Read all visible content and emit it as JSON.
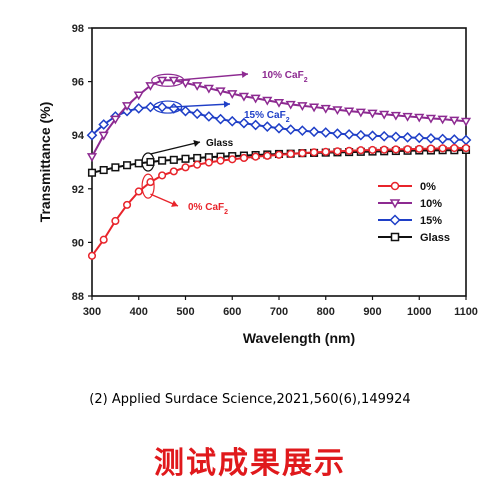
{
  "chart_data": {
    "type": "line",
    "xlabel": "Wavelength (nm)",
    "ylabel": "Transmittance (%)",
    "xlim": [
      300,
      1100
    ],
    "ylim": [
      88,
      98
    ],
    "xticks": [
      300,
      400,
      500,
      600,
      700,
      800,
      900,
      1000,
      1100
    ],
    "yticks": [
      88,
      90,
      92,
      94,
      96,
      98
    ],
    "grid": false,
    "legend_position": "right",
    "series": [
      {
        "name": "0%",
        "color": "#e8242b",
        "marker": "circle",
        "x": [
          300,
          325,
          350,
          375,
          400,
          425,
          450,
          475,
          500,
          525,
          550,
          575,
          600,
          625,
          650,
          675,
          700,
          725,
          750,
          775,
          800,
          825,
          850,
          875,
          900,
          925,
          950,
          975,
          1000,
          1025,
          1050,
          1075,
          1100
        ],
        "y": [
          89.5,
          90.1,
          90.8,
          91.4,
          91.9,
          92.25,
          92.5,
          92.65,
          92.8,
          92.9,
          92.98,
          93.05,
          93.1,
          93.15,
          93.2,
          93.23,
          93.27,
          93.3,
          93.33,
          93.36,
          93.38,
          93.4,
          93.42,
          93.44,
          93.45,
          93.46,
          93.47,
          93.48,
          93.49,
          93.5,
          93.51,
          93.52,
          93.52
        ]
      },
      {
        "name": "10%",
        "color": "#8d2a91",
        "marker": "triangle-down",
        "x": [
          300,
          325,
          350,
          375,
          400,
          425,
          450,
          475,
          500,
          525,
          550,
          575,
          600,
          625,
          650,
          675,
          700,
          725,
          750,
          775,
          800,
          825,
          850,
          875,
          900,
          925,
          950,
          975,
          1000,
          1025,
          1050,
          1075,
          1100
        ],
        "y": [
          93.2,
          94.0,
          94.6,
          95.1,
          95.5,
          95.85,
          96.05,
          96.05,
          95.95,
          95.85,
          95.75,
          95.65,
          95.55,
          95.45,
          95.38,
          95.3,
          95.22,
          95.15,
          95.1,
          95.05,
          95.0,
          94.95,
          94.9,
          94.86,
          94.82,
          94.78,
          94.74,
          94.7,
          94.67,
          94.63,
          94.6,
          94.56,
          94.52
        ]
      },
      {
        "name": "15%",
        "color": "#1f3fc7",
        "marker": "diamond",
        "x": [
          300,
          325,
          350,
          375,
          400,
          425,
          450,
          475,
          500,
          525,
          550,
          575,
          600,
          625,
          650,
          675,
          700,
          725,
          750,
          775,
          800,
          825,
          850,
          875,
          900,
          925,
          950,
          975,
          1000,
          1025,
          1050,
          1075,
          1100
        ],
        "y": [
          94.0,
          94.4,
          94.7,
          94.9,
          95.0,
          95.05,
          95.05,
          95.0,
          94.9,
          94.8,
          94.7,
          94.6,
          94.52,
          94.45,
          94.38,
          94.32,
          94.26,
          94.21,
          94.17,
          94.13,
          94.1,
          94.06,
          94.03,
          94.0,
          93.98,
          93.96,
          93.94,
          93.92,
          93.9,
          93.88,
          93.86,
          93.84,
          93.82
        ]
      },
      {
        "name": "Glass",
        "color": "#111111",
        "marker": "square",
        "x": [
          300,
          325,
          350,
          375,
          400,
          425,
          450,
          475,
          500,
          525,
          550,
          575,
          600,
          625,
          650,
          675,
          700,
          725,
          750,
          775,
          800,
          825,
          850,
          875,
          900,
          925,
          950,
          975,
          1000,
          1025,
          1050,
          1075,
          1100
        ],
        "y": [
          92.6,
          92.7,
          92.8,
          92.88,
          92.95,
          93.0,
          93.05,
          93.08,
          93.12,
          93.15,
          93.18,
          93.2,
          93.22,
          93.24,
          93.26,
          93.28,
          93.3,
          93.31,
          93.33,
          93.34,
          93.35,
          93.36,
          93.37,
          93.38,
          93.39,
          93.4,
          93.41,
          93.42,
          93.43,
          93.43,
          93.44,
          93.44,
          93.45
        ]
      }
    ],
    "annotations": [
      {
        "label": "10% CaF",
        "subscript": "2",
        "color": "#8d2a91"
      },
      {
        "label": "15% CaF",
        "subscript": "2",
        "color": "#1f3fc7"
      },
      {
        "label": "Glass",
        "subscript": "",
        "color": "#111111"
      },
      {
        "label": "0% CaF",
        "subscript": "2",
        "color": "#e8242b"
      }
    ]
  },
  "citation": "(2) Applied Surdace Science,2021,560(6),149924",
  "footer_title": "测试成果展示"
}
